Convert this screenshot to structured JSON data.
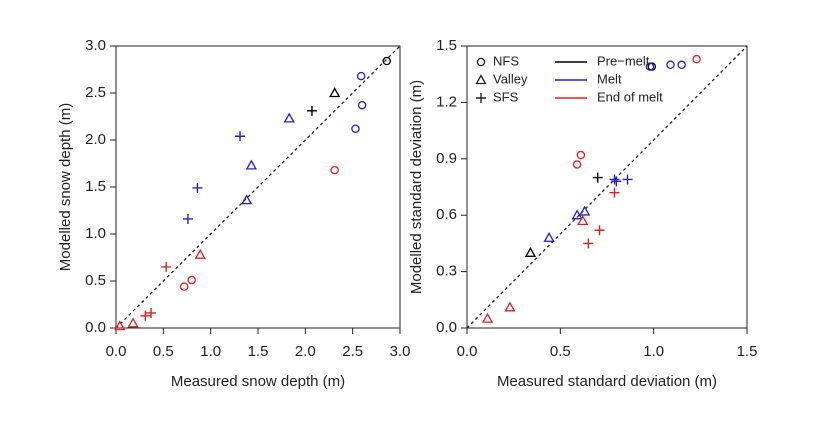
{
  "chart_data": [
    {
      "type": "scatter",
      "xlabel": "Measured snow depth (m)",
      "ylabel": "Modelled snow depth (m)",
      "xlim": [
        0,
        3
      ],
      "ylim": [
        0,
        3
      ],
      "xticks": [
        {
          "value": 0,
          "label": "0.0"
        },
        {
          "value": 0.5,
          "label": "0.5"
        },
        {
          "value": 1,
          "label": "1.0"
        },
        {
          "value": 1.5,
          "label": "1.5"
        },
        {
          "value": 2,
          "label": "2.0"
        },
        {
          "value": 2.5,
          "label": "2.5"
        },
        {
          "value": 3,
          "label": "3.0"
        }
      ],
      "yticks": [
        {
          "value": 0,
          "label": "0.0"
        },
        {
          "value": 0.5,
          "label": "0.5"
        },
        {
          "value": 1,
          "label": "1.0"
        },
        {
          "value": 1.5,
          "label": "1.5"
        },
        {
          "value": 2,
          "label": "2.0"
        },
        {
          "value": 2.5,
          "label": "2.5"
        },
        {
          "value": 3,
          "label": "3.0"
        }
      ],
      "series": [
        {
          "marker": "circle",
          "color": "#000000",
          "x": [
            2.86
          ],
          "values": [
            2.84
          ]
        },
        {
          "marker": "triangle",
          "color": "#000000",
          "x": [
            2.31
          ],
          "values": [
            2.5
          ]
        },
        {
          "marker": "plus",
          "color": "#000000",
          "x": [
            2.07
          ],
          "values": [
            2.31
          ]
        },
        {
          "marker": "circle",
          "color": "#2020d0",
          "x": [
            2.59,
            2.6,
            2.53
          ],
          "values": [
            2.68,
            2.37,
            2.12
          ]
        },
        {
          "marker": "triangle",
          "color": "#2020d0",
          "x": [
            1.83,
            1.43,
            1.38
          ],
          "values": [
            2.23,
            1.73,
            1.36
          ]
        },
        {
          "marker": "plus",
          "color": "#2020d0",
          "x": [
            1.31,
            0.86,
            0.76
          ],
          "values": [
            2.04,
            1.49,
            1.16
          ]
        },
        {
          "marker": "circle",
          "color": "#e02020",
          "x": [
            2.31,
            0.8,
            0.72
          ],
          "values": [
            1.68,
            0.51,
            0.44
          ]
        },
        {
          "marker": "triangle",
          "color": "#e02020",
          "x": [
            0.89,
            0.18,
            0.04
          ],
          "values": [
            0.78,
            0.05,
            0.02
          ]
        },
        {
          "marker": "plus",
          "color": "#e02020",
          "x": [
            0.53,
            0.37,
            0.31
          ],
          "values": [
            0.65,
            0.16,
            0.13
          ]
        }
      ]
    },
    {
      "type": "scatter",
      "xlabel": "Measured standard deviation (m)",
      "ylabel": "Modelled standard deviation (m)",
      "xlim": [
        0,
        1.5
      ],
      "ylim": [
        0,
        1.5
      ],
      "xticks": [
        {
          "value": 0,
          "label": "0.0"
        },
        {
          "value": 0.5,
          "label": "0.5"
        },
        {
          "value": 1,
          "label": "1.0"
        },
        {
          "value": 1.5,
          "label": "1.5"
        }
      ],
      "yticks": [
        {
          "value": 0,
          "label": "0.0"
        },
        {
          "value": 0.3,
          "label": "0.3"
        },
        {
          "value": 0.6,
          "label": "0.6"
        },
        {
          "value": 0.9,
          "label": "0.9"
        },
        {
          "value": 1.2,
          "label": "1.2"
        },
        {
          "value": 1.5,
          "label": "1.5"
        }
      ],
      "series": [
        {
          "marker": "circle",
          "color": "#000000",
          "x": [
            0.99
          ],
          "values": [
            1.39
          ]
        },
        {
          "marker": "triangle",
          "color": "#000000",
          "x": [
            0.34
          ],
          "values": [
            0.4
          ]
        },
        {
          "marker": "plus",
          "color": "#000000",
          "x": [
            0.7
          ],
          "values": [
            0.8
          ]
        },
        {
          "marker": "circle",
          "color": "#2020d0",
          "x": [
            0.98,
            1.09,
            1.15
          ],
          "values": [
            1.39,
            1.4,
            1.4
          ]
        },
        {
          "marker": "triangle",
          "color": "#2020d0",
          "x": [
            0.44,
            0.59,
            0.63
          ],
          "values": [
            0.48,
            0.6,
            0.62
          ]
        },
        {
          "marker": "plus",
          "color": "#2020d0",
          "x": [
            0.79,
            0.86,
            0.8
          ],
          "values": [
            0.79,
            0.79,
            0.78
          ]
        },
        {
          "marker": "circle",
          "color": "#e02020",
          "x": [
            1.23,
            0.61,
            0.59
          ],
          "values": [
            1.43,
            0.92,
            0.87
          ]
        },
        {
          "marker": "triangle",
          "color": "#e02020",
          "x": [
            0.11,
            0.23,
            0.62
          ],
          "values": [
            0.05,
            0.11,
            0.57
          ]
        },
        {
          "marker": "plus",
          "color": "#e02020",
          "x": [
            0.71,
            0.65,
            0.79
          ],
          "values": [
            0.52,
            0.45,
            0.72
          ]
        }
      ],
      "legend": {
        "symbols": [
          {
            "label": "NFS",
            "marker": "circle"
          },
          {
            "label": "Valley",
            "marker": "triangle"
          },
          {
            "label": "SFS",
            "marker": "plus"
          }
        ],
        "lines": [
          {
            "label": "Pre−melt",
            "color": "#000000"
          },
          {
            "label": "Melt",
            "color": "#2020d0"
          },
          {
            "label": "End of melt",
            "color": "#e02020"
          }
        ]
      }
    }
  ]
}
